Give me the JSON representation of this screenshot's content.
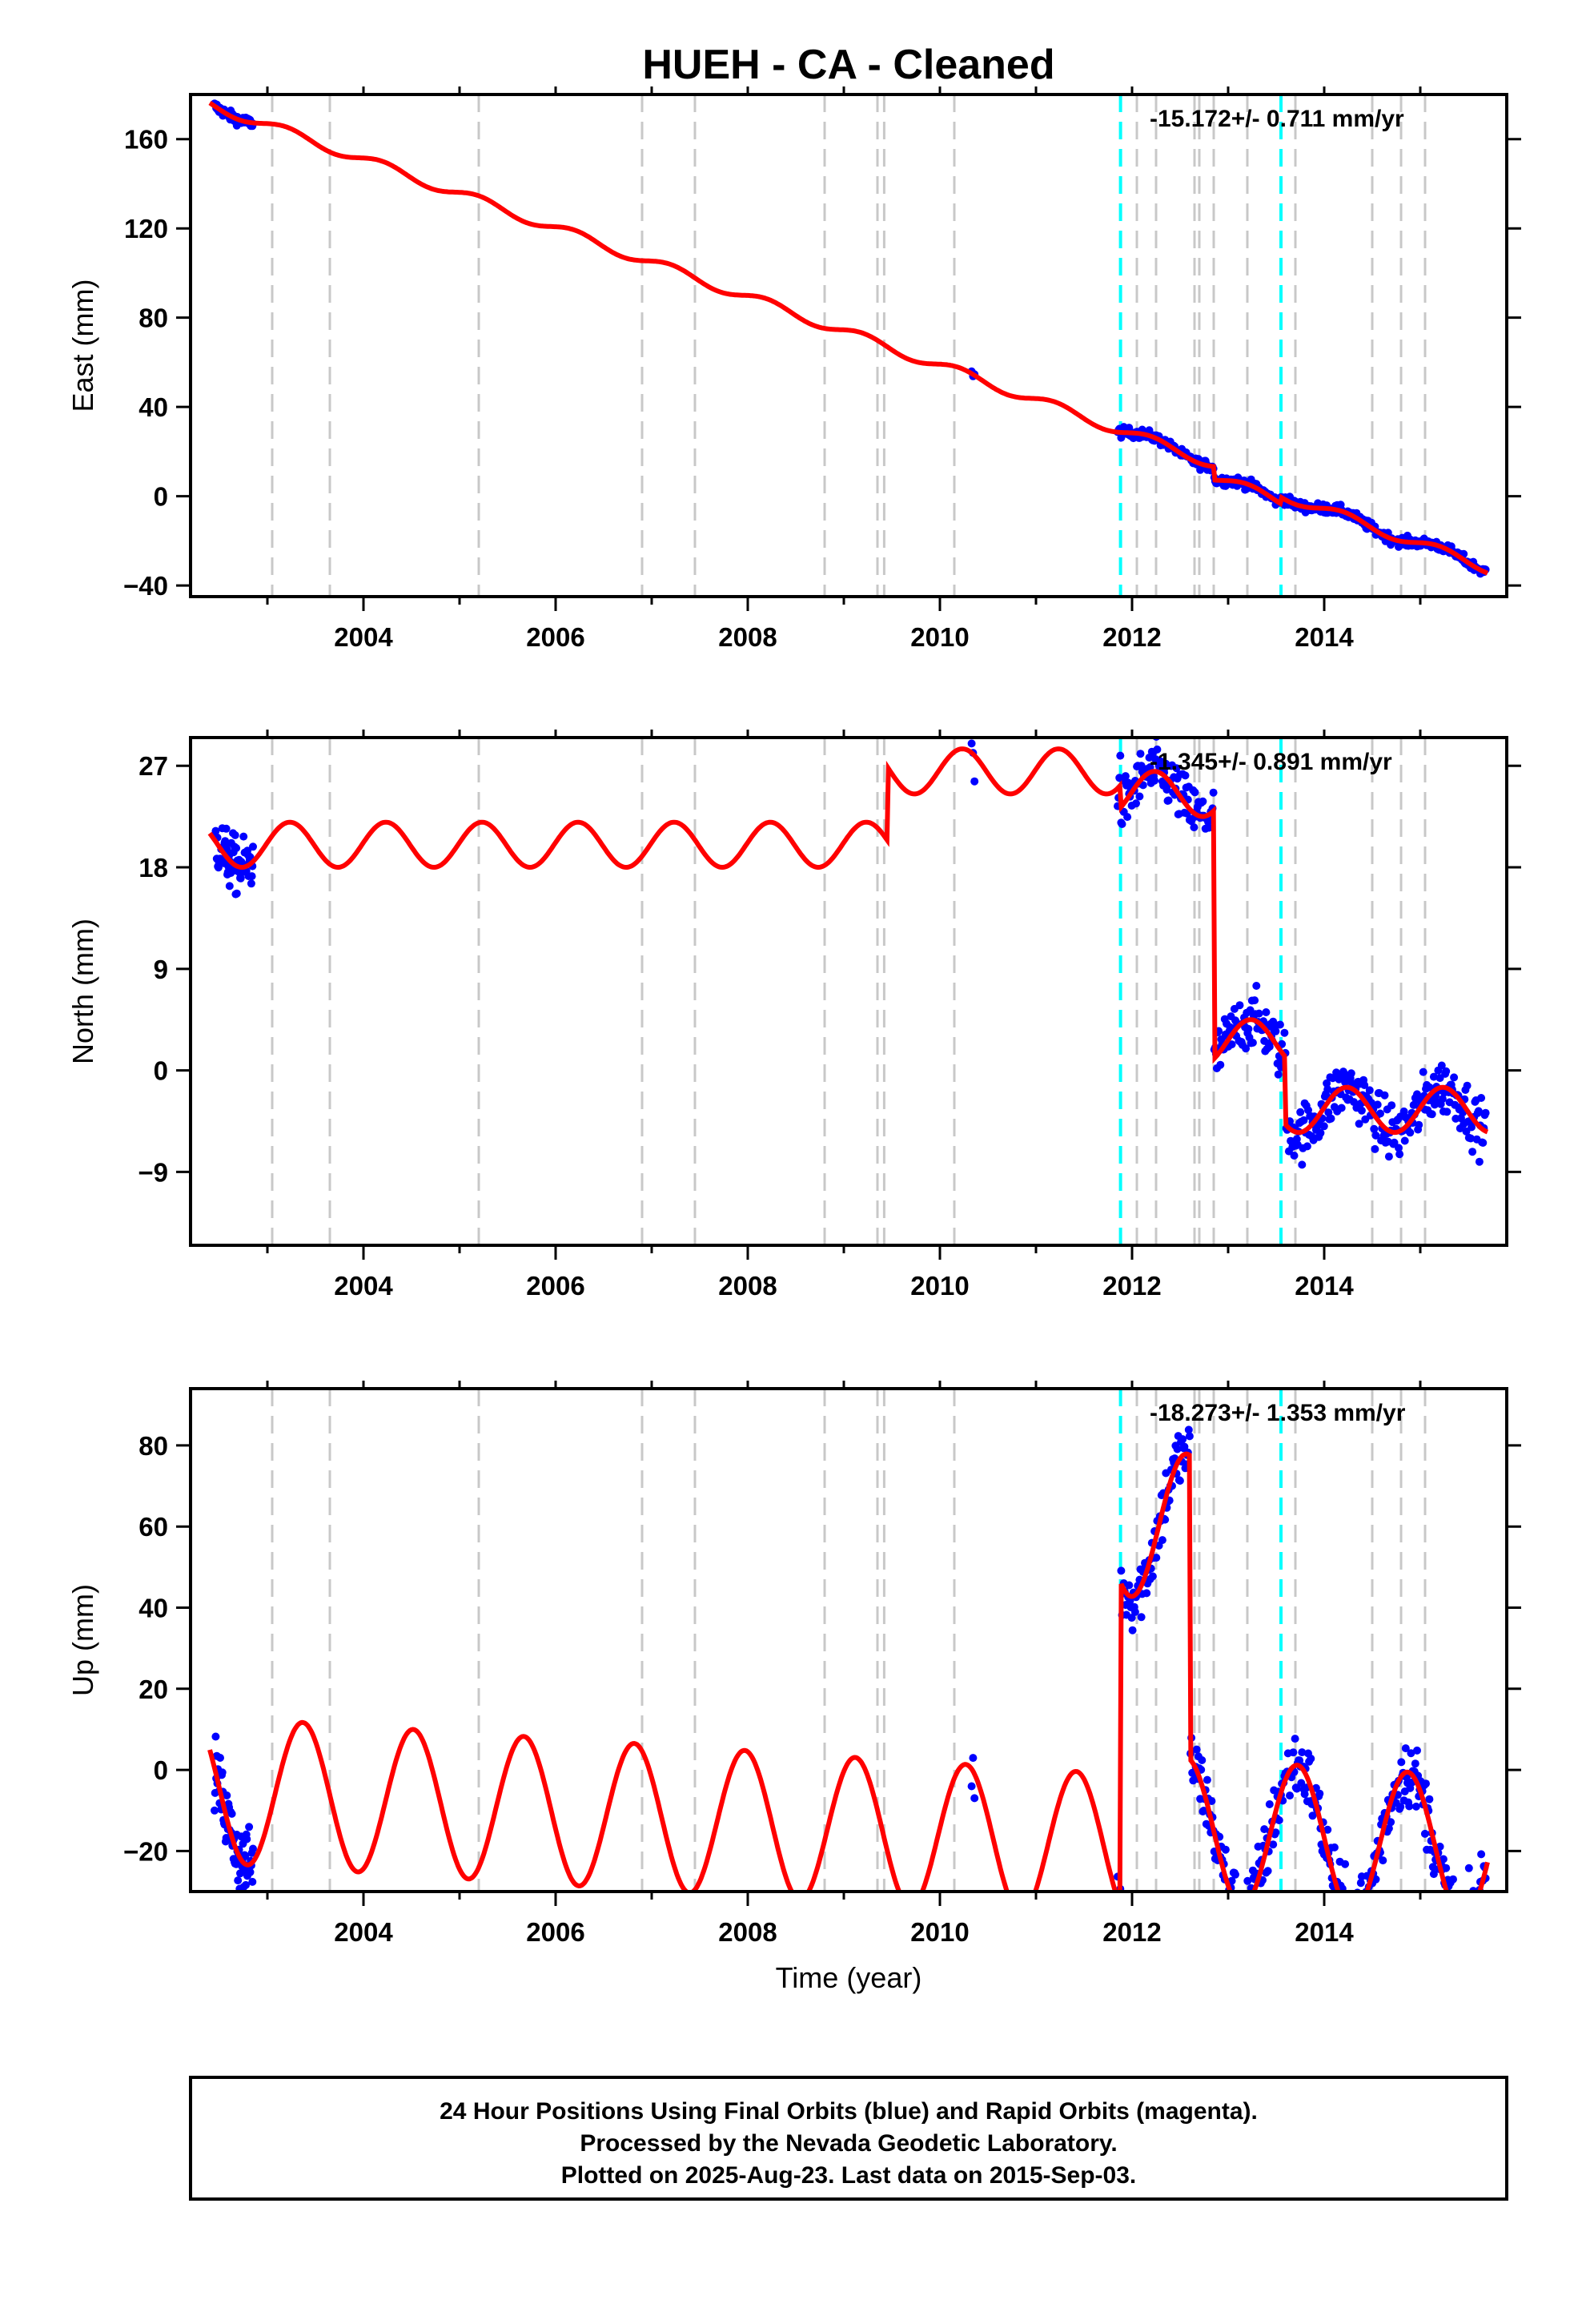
{
  "page": {
    "footer_lines": [
      "24 Hour Positions Using Final Orbits (blue) and Rapid Orbits (magenta).",
      "Processed by the Nevada Geodetic Laboratory.",
      "Plotted on 2025-Aug-23. Last data on 2015-Sep-03."
    ]
  },
  "colors": {
    "data_points": "#0000ff",
    "model_line": "#ff0000",
    "equipment_change": "#c8c8c8",
    "earthquake": "#00ffff",
    "frame": "#000000"
  },
  "chart_data": [
    {
      "type": "scatter",
      "title": "HUEH  - CA - Cleaned",
      "xlabel": "",
      "ylabel": "East (mm)",
      "rate_text": "-15.172+/- 0.711 mm/yr",
      "xlim": [
        2002.2,
        2015.9
      ],
      "ylim": [
        -45,
        180
      ],
      "xticks": [
        2004,
        2006,
        2008,
        2010,
        2012,
        2014
      ],
      "yticks": [
        -40,
        0,
        40,
        80,
        120,
        160
      ],
      "grey_lines_x": [
        2003.05,
        2003.65,
        2005.2,
        2006.9,
        2007.45,
        2008.8,
        2009.35,
        2009.42,
        2010.15,
        2012.05,
        2012.25,
        2012.65,
        2012.7,
        2012.85,
        2013.2,
        2013.7,
        2014.5,
        2014.8,
        2015.05
      ],
      "cyan_lines_x": [
        2011.88,
        2013.55
      ],
      "trend": {
        "t0": 2002.5,
        "y0": 174,
        "rate": -15.4
      },
      "seasonal": [
        {
          "amp": 2.2,
          "period": 1.0,
          "phase": 0.3
        }
      ],
      "offsets": [
        {
          "t": 2012.85,
          "dy": -6
        },
        {
          "t": 2013.55,
          "dy": 3
        }
      ],
      "segments": [
        [
          2002.4,
          2015.7
        ]
      ],
      "noise": 1.6,
      "data_ranges": [
        [
          2002.45,
          2002.85,
          70
        ],
        [
          2010.33,
          2010.36,
          3
        ],
        [
          2011.85,
          2015.68,
          420
        ]
      ]
    },
    {
      "type": "scatter",
      "title": "",
      "xlabel": "",
      "ylabel": "North (mm)",
      "rate_text": "-1.345+/- 0.891 mm/yr",
      "xlim": [
        2002.2,
        2015.9
      ],
      "ylim": [
        -15.5,
        29.5
      ],
      "xticks": [
        2004,
        2006,
        2008,
        2010,
        2012,
        2014
      ],
      "yticks": [
        -9,
        0,
        9,
        18,
        27
      ],
      "grey_lines_x": [
        2003.05,
        2003.65,
        2005.2,
        2006.9,
        2007.45,
        2008.8,
        2009.35,
        2009.42,
        2010.15,
        2012.05,
        2012.25,
        2012.65,
        2012.7,
        2012.85,
        2013.2,
        2013.7,
        2014.5,
        2014.8,
        2015.05
      ],
      "cyan_lines_x": [
        2011.88,
        2013.55
      ],
      "trend": {
        "t0": 2002.5,
        "y0": 20,
        "rate": 0.0
      },
      "seasonal": [
        {
          "amp": 2.0,
          "period": 1.0,
          "phase": 0.1
        }
      ],
      "offsets": [
        {
          "t": 2009.45,
          "dy": 6.5
        },
        {
          "t": 2011.88,
          "dy": -2
        },
        {
          "t": 2012.85,
          "dy": -22
        },
        {
          "t": 2013.6,
          "dy": -6
        }
      ],
      "segments": [
        [
          2002.4,
          2015.7
        ]
      ],
      "noise": 1.8,
      "data_ranges": [
        [
          2002.45,
          2002.85,
          70
        ],
        [
          2010.33,
          2010.36,
          3
        ],
        [
          2011.85,
          2015.68,
          420
        ]
      ]
    },
    {
      "type": "scatter",
      "title": "",
      "xlabel": "Time (year)",
      "ylabel": "Up (mm)",
      "rate_text": "-18.273+/- 1.353 mm/yr",
      "xlim": [
        2002.2,
        2015.9
      ],
      "ylim": [
        -30,
        94
      ],
      "xticks": [
        2004,
        2006,
        2008,
        2010,
        2012,
        2014
      ],
      "yticks": [
        -20,
        0,
        20,
        40,
        60,
        80
      ],
      "grey_lines_x": [
        2003.05,
        2003.65,
        2005.2,
        2006.9,
        2007.45,
        2008.8,
        2009.35,
        2009.42,
        2010.15,
        2012.05,
        2012.25,
        2012.65,
        2012.7,
        2012.85,
        2013.2,
        2013.7,
        2014.5,
        2014.8,
        2015.05
      ],
      "cyan_lines_x": [
        2011.88,
        2013.55
      ],
      "trend": {
        "t0": 2002.5,
        "y0": -5,
        "rate": -1.5
      },
      "seasonal": [
        {
          "amp": 18,
          "period": 1.15,
          "phase": 1.2
        }
      ],
      "offsets": [
        {
          "t": 2011.88,
          "dy": 80
        },
        {
          "t": 2012.6,
          "dy": -75
        }
      ],
      "segments": [
        [
          2002.4,
          2015.7
        ]
      ],
      "noise": 6,
      "data_ranges": [
        [
          2002.45,
          2002.85,
          70
        ],
        [
          2010.33,
          2010.36,
          3
        ],
        [
          2011.85,
          2015.68,
          420
        ]
      ]
    }
  ]
}
